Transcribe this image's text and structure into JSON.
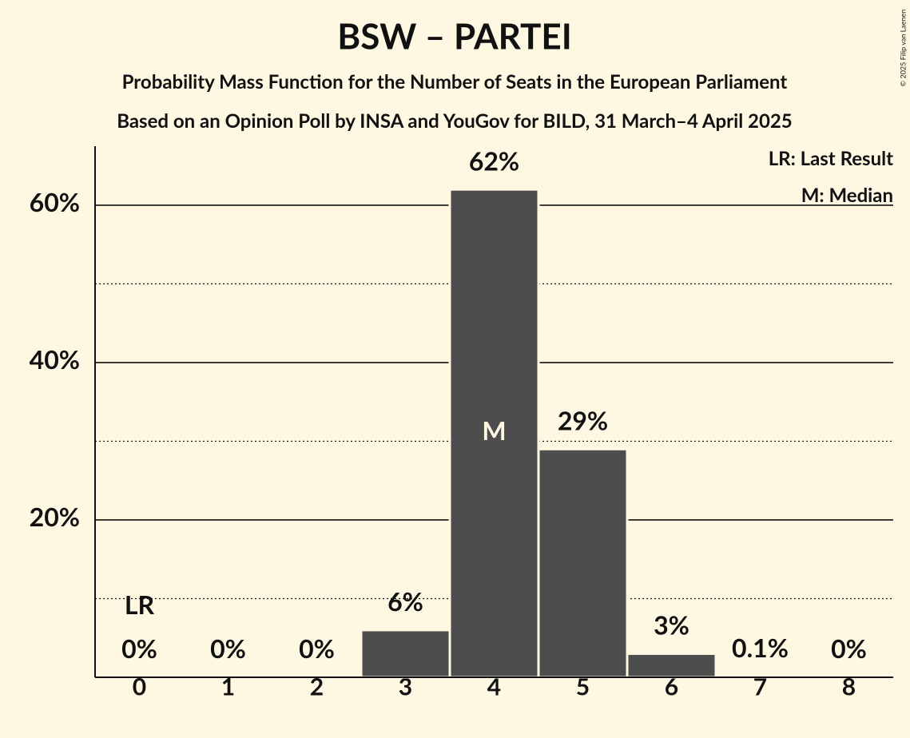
{
  "chart_data": {
    "type": "bar",
    "title": "BSW – PARTEI",
    "subtitle": "Probability Mass Function for the Number of Seats in the European Parliament",
    "subtitle2": "Based on an Opinion Poll by INSA and YouGov for BILD, 31 March–4 April 2025",
    "copyright": "© 2025 Filip van Laenen",
    "categories": [
      "0",
      "1",
      "2",
      "3",
      "4",
      "5",
      "6",
      "7",
      "8"
    ],
    "values": [
      0,
      0,
      0,
      6,
      62,
      29,
      3,
      0.1,
      0
    ],
    "value_labels": [
      "0%",
      "0%",
      "0%",
      "6%",
      "62%",
      "29%",
      "3%",
      "0.1%",
      "0%"
    ],
    "color": "#4d4d4d",
    "ylim": [
      0,
      67.5
    ],
    "yticks": [
      {
        "value": 20,
        "label": "20%"
      },
      {
        "value": 40,
        "label": "40%"
      },
      {
        "value": 60,
        "label": "60%"
      }
    ],
    "minor_gridlines": [
      10,
      30,
      50
    ],
    "grid": true,
    "last_result_label": "LR",
    "last_result_category": "0",
    "median_label": "M",
    "median_category": "4",
    "legend": [
      "LR: Last Result",
      "M: Median"
    ],
    "legend_position": "upper right"
  }
}
